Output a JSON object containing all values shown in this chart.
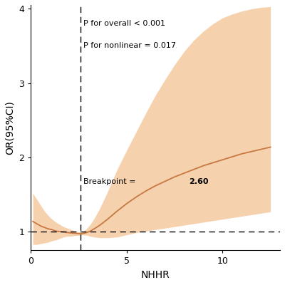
{
  "title": "",
  "xlabel": "NHHR",
  "ylabel": "OR(95%CI)",
  "xlim": [
    0,
    13
  ],
  "ylim": [
    0.75,
    4.05
  ],
  "xticks": [
    0,
    5,
    10
  ],
  "yticks": [
    1,
    2,
    3,
    4
  ],
  "breakpoint_x": 2.6,
  "hline_y": 1.0,
  "annotation_p_overall": "P for overall < 0.001",
  "annotation_p_nonlinear": "P for nonlinear = 0.017",
  "annotation_breakpoint": "Breakpoint = ",
  "annotation_breakpoint_bold": "2.60",
  "line_color": "#c87941",
  "ci_color": "#f5c9a0",
  "ci_alpha": 0.85,
  "background_color": "#ffffff",
  "curve_x": [
    0.1,
    0.3,
    0.5,
    0.7,
    0.9,
    1.1,
    1.3,
    1.5,
    1.7,
    1.9,
    2.1,
    2.3,
    2.5,
    2.6,
    2.7,
    2.9,
    3.1,
    3.3,
    3.6,
    4.0,
    4.5,
    5.0,
    5.5,
    6.0,
    6.5,
    7.0,
    7.5,
    8.0,
    8.5,
    9.0,
    9.5,
    10.0,
    10.5,
    11.0,
    11.5,
    12.0,
    12.5
  ],
  "curve_y": [
    1.14,
    1.11,
    1.08,
    1.06,
    1.04,
    1.03,
    1.01,
    1.005,
    1.0,
    0.99,
    0.985,
    0.98,
    0.976,
    0.975,
    0.978,
    0.99,
    1.01,
    1.04,
    1.09,
    1.17,
    1.28,
    1.38,
    1.47,
    1.55,
    1.62,
    1.68,
    1.74,
    1.79,
    1.84,
    1.89,
    1.93,
    1.97,
    2.01,
    2.05,
    2.08,
    2.11,
    2.14
  ],
  "ci_upper": [
    1.52,
    1.44,
    1.36,
    1.28,
    1.22,
    1.17,
    1.13,
    1.1,
    1.07,
    1.05,
    1.03,
    1.01,
    1.0,
    0.995,
    1.0,
    1.04,
    1.1,
    1.18,
    1.32,
    1.54,
    1.84,
    2.1,
    2.35,
    2.6,
    2.84,
    3.05,
    3.25,
    3.43,
    3.58,
    3.7,
    3.8,
    3.88,
    3.93,
    3.97,
    4.0,
    4.02,
    4.03
  ],
  "ci_lower": [
    0.83,
    0.83,
    0.84,
    0.85,
    0.86,
    0.88,
    0.89,
    0.91,
    0.93,
    0.94,
    0.94,
    0.95,
    0.953,
    0.955,
    0.957,
    0.955,
    0.94,
    0.93,
    0.92,
    0.92,
    0.93,
    0.96,
    0.99,
    1.01,
    1.03,
    1.05,
    1.07,
    1.09,
    1.11,
    1.13,
    1.15,
    1.17,
    1.19,
    1.21,
    1.23,
    1.25,
    1.27
  ]
}
